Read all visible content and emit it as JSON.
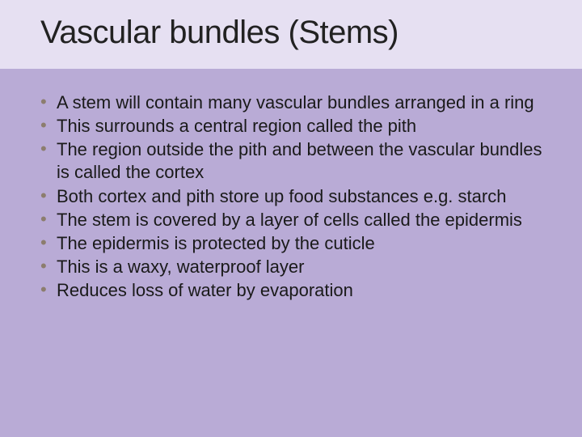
{
  "slide": {
    "background_color": "#b9abd6",
    "title_band": {
      "background_color": "#e6e0f2",
      "title": "Vascular bundles (Stems)",
      "title_color": "#222222",
      "title_fontsize": 40
    },
    "content": {
      "bullet_color": "#8c7d6e",
      "text_color": "#1a1a1a",
      "text_fontsize": 22,
      "items": [
        "A stem will contain many vascular bundles arranged in a ring",
        "This surrounds a central region called the pith",
        "The region outside the pith and between the vascular bundles is called the cortex",
        "Both cortex and pith store up food substances e.g. starch",
        "The stem is covered by a layer of cells called the epidermis",
        "The epidermis is protected by the cuticle",
        "This is a waxy, waterproof layer",
        "Reduces loss of water by evaporation"
      ]
    }
  }
}
